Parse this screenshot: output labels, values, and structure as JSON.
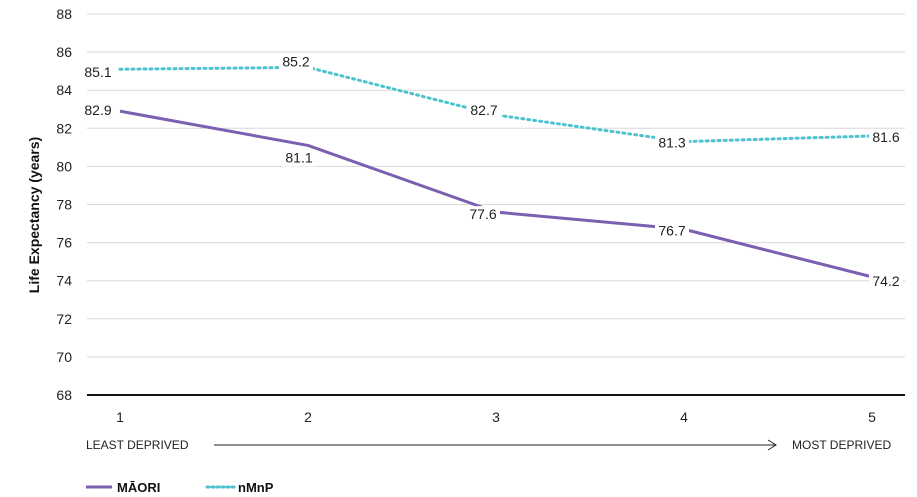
{
  "chart_data": {
    "type": "line",
    "categories": [
      "1",
      "2",
      "3",
      "4",
      "5"
    ],
    "series": [
      {
        "name": "MĀORI",
        "values": [
          82.9,
          81.1,
          77.6,
          76.7,
          74.2
        ],
        "color": "#7b5fb0",
        "style": "solid"
      },
      {
        "name": "nMnP",
        "values": [
          85.1,
          85.2,
          82.7,
          81.3,
          81.6
        ],
        "color": "#4ec3cf",
        "style": "dotted"
      }
    ],
    "data_labels": {
      "maori": [
        "82.9",
        "81.1",
        "77.6",
        "76.7",
        "74.2"
      ],
      "nmnp": [
        "85.1",
        "85.2",
        "82.7",
        "81.3",
        "81.6"
      ]
    },
    "ylabel": "Life Expectancy (years)",
    "xlabel": "",
    "ylim": [
      68,
      88
    ],
    "yticks": [
      "68",
      "70",
      "72",
      "74",
      "76",
      "78",
      "80",
      "82",
      "84",
      "86",
      "88"
    ],
    "x_axis_notes": {
      "left": "LEAST DEPRIVED",
      "right": "MOST DEPRIVED"
    },
    "grid": true,
    "legend_position": "bottom-left"
  }
}
